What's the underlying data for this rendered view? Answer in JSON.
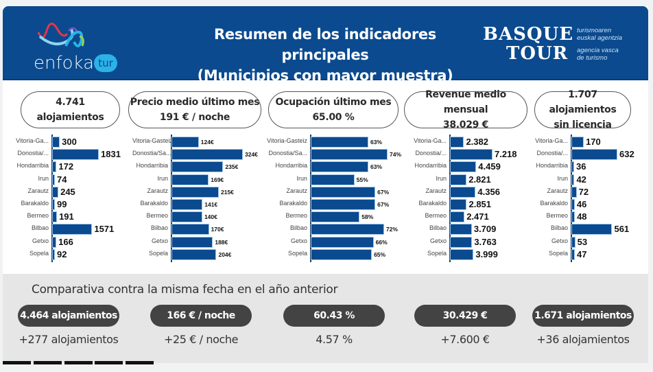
{
  "header": {
    "title_line1": "Resumen de los indicadores principales",
    "title_line2": "(Municipios con mayor muestra)",
    "logo_left": {
      "word": "enfoka",
      "badge": "tur"
    },
    "logo_right": {
      "line1": "BASQUE",
      "line2": "TOUR",
      "sub1": "turismoaren",
      "sub2": "euskal agentzia",
      "sub3": "agencia vasca",
      "sub4": "de turismo"
    },
    "colors": {
      "header_bg": "#0b4a8e",
      "bar": "#0b4a8e",
      "pill_dark": "#434343"
    }
  },
  "kpis": [
    {
      "line1": "4.741 alojamientos",
      "line2": ""
    },
    {
      "line1": "Precio medio último mes",
      "line2": "191 € / noche"
    },
    {
      "line1": "Ocupación último mes",
      "line2": "65.00 %"
    },
    {
      "line1": "Revenue medio mensual",
      "line2": "38.029 €"
    },
    {
      "line1": "1.707 alojamientos",
      "line2": "sin licencia"
    }
  ],
  "chart_data": [
    {
      "type": "bar",
      "orientation": "horizontal",
      "title": "4.741 alojamientos",
      "categories": [
        "Vitoria-Ga...",
        "Donostia/...",
        "Hondarribia",
        "Irun",
        "Zarautz",
        "Barakaldo",
        "Bermeo",
        "Bilbao",
        "Getxo",
        "Sopela"
      ],
      "values": [
        300,
        1831,
        172,
        74,
        245,
        99,
        191,
        1571,
        166,
        92
      ],
      "labels": [
        "300",
        "1831",
        "172",
        "74",
        "245",
        "99",
        "191",
        "1571",
        "166",
        "92"
      ],
      "xlabel": "",
      "ylabel": "",
      "grid": false
    },
    {
      "type": "bar",
      "orientation": "horizontal",
      "title": "Precio medio último mes",
      "categories": [
        "Vitoria-Gasteiz",
        "Donostia/Sa...",
        "Hondarribia",
        "Irun",
        "Zarautz",
        "Barakaldo",
        "Bermeo",
        "Bilbao",
        "Getxo",
        "Sopela"
      ],
      "values": [
        124,
        324,
        235,
        169,
        215,
        141,
        140,
        170,
        188,
        204
      ],
      "labels": [
        "124€",
        "324€",
        "235€",
        "169€",
        "215€",
        "141€",
        "140€",
        "170€",
        "188€",
        "204€"
      ],
      "xlabel": "",
      "ylabel": "",
      "grid": false
    },
    {
      "type": "bar",
      "orientation": "horizontal",
      "title": "Ocupación último mes",
      "categories": [
        "Vitoria-Gasteiz",
        "Donostia/Sa...",
        "Hondarribia",
        "Irun",
        "Zarautz",
        "Barakaldo",
        "Bermeo",
        "Bilbao",
        "Getxo",
        "Sopela"
      ],
      "values": [
        63,
        74,
        63,
        55,
        67,
        67,
        58,
        72,
        66,
        65
      ],
      "labels": [
        "63%",
        "74%",
        "63%",
        "55%",
        "67%",
        "67%",
        "58%",
        "72%",
        "66%",
        "65%"
      ],
      "xlabel": "",
      "ylabel": "",
      "grid": false
    },
    {
      "type": "bar",
      "orientation": "horizontal",
      "title": "Revenue medio mensual",
      "categories": [
        "Vitoria-Ga...",
        "Donostia/...",
        "Hondarribia",
        "Irun",
        "Zarautz",
        "Barakaldo",
        "Bermeo",
        "Bilbao",
        "Getxo",
        "Sopela"
      ],
      "values": [
        2382,
        7218,
        4459,
        2821,
        4356,
        2851,
        2471,
        3709,
        3763,
        3999
      ],
      "labels": [
        "2.382",
        "7.218",
        "4.459",
        "2.821",
        "4.356",
        "2.851",
        "2.471",
        "3.709",
        "3.763",
        "3.999"
      ],
      "xlabel": "",
      "ylabel": "",
      "grid": false
    },
    {
      "type": "bar",
      "orientation": "horizontal",
      "title": "1.707 alojamientos sin licencia",
      "categories": [
        "Vitoria-Ga...",
        "Donostia/...",
        "Hondarribia",
        "Irun",
        "Zarautz",
        "Barakaldo",
        "Bermeo",
        "Bilbao",
        "Getxo",
        "Sopela"
      ],
      "values": [
        170,
        632,
        36,
        42,
        72,
        46,
        48,
        561,
        53,
        47
      ],
      "labels": [
        "170",
        "632",
        "36",
        "42",
        "72",
        "46",
        "48",
        "561",
        "53",
        "47"
      ],
      "xlabel": "",
      "ylabel": "",
      "grid": false
    }
  ],
  "comparison": {
    "title": "Comparativa contra la misma fecha en el año anterior",
    "items": [
      {
        "previous": "4.464 alojamientos",
        "delta": "+277 alojamientos"
      },
      {
        "previous": "166 € / noche",
        "delta": "+25 € / noche"
      },
      {
        "previous": "60.43 %",
        "delta": "4.57 %"
      },
      {
        "previous": "30.429 €",
        "delta": "+7.600 €"
      },
      {
        "previous": "1.671 alojamientos",
        "delta": "+36 alojamientos"
      }
    ]
  },
  "page_tabs": 5
}
